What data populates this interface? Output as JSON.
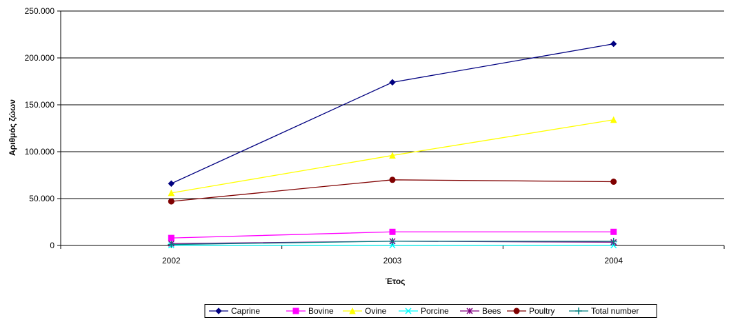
{
  "chart_data": {
    "type": "line",
    "title": "",
    "xlabel": "Έτος",
    "ylabel": "Αριθμός ζώων",
    "categories": [
      "2002",
      "2003",
      "2004"
    ],
    "ylim": [
      0,
      250000
    ],
    "yticks": [
      0,
      50000,
      100000,
      150000,
      200000,
      250000
    ],
    "ytick_labels": [
      "0",
      "50.000",
      "100.000",
      "150.000",
      "200.000",
      "250.000"
    ],
    "grid": true,
    "legend_position": "bottom-right",
    "series": [
      {
        "name": "Caprine",
        "values": [
          66000,
          174000,
          215000
        ],
        "color": "#000080",
        "marker": "diamond"
      },
      {
        "name": "Bovine",
        "values": [
          8000,
          14500,
          14500
        ],
        "color": "#ff00ff",
        "marker": "square"
      },
      {
        "name": "Ovine",
        "values": [
          56000,
          96000,
          134000
        ],
        "color": "#ffff00",
        "marker": "triangle"
      },
      {
        "name": "Porcine",
        "values": [
          200,
          200,
          200
        ],
        "color": "#00ffff",
        "marker": "x"
      },
      {
        "name": "Bees",
        "values": [
          2000,
          4500,
          3500
        ],
        "color": "#800080",
        "marker": "star"
      },
      {
        "name": "Poultry",
        "values": [
          47000,
          70000,
          68000
        ],
        "color": "#800000",
        "marker": "circle"
      },
      {
        "name": "Total number",
        "values": [
          1000,
          4500,
          4500
        ],
        "color": "#008080",
        "marker": "plus"
      }
    ]
  }
}
